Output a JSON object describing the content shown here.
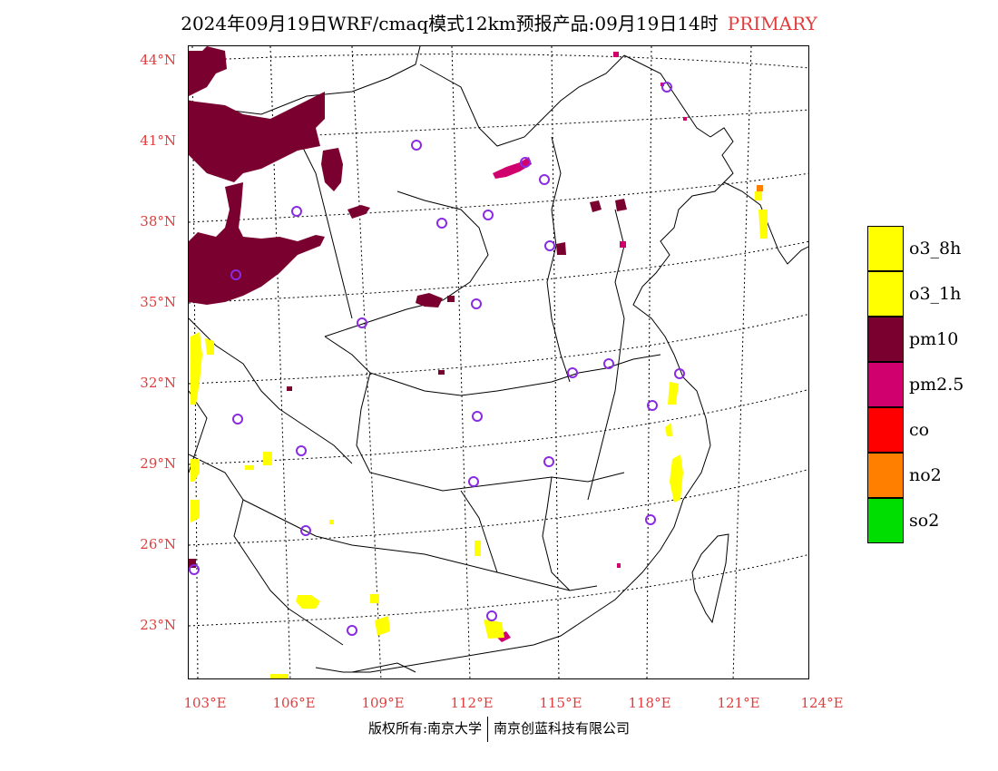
{
  "title": {
    "main": "2024年09月19日WRF/cmaq模式12km预报产品:09月19日14时",
    "tag": "PRIMARY"
  },
  "axes": {
    "lat_labels": [
      "44°N",
      "41°N",
      "38°N",
      "35°N",
      "32°N",
      "29°N",
      "26°N",
      "23°N"
    ],
    "lon_labels": [
      "103°E",
      "106°E",
      "109°E",
      "112°E",
      "115°E",
      "118°E",
      "121°E",
      "124°E"
    ]
  },
  "legend": [
    {
      "label": "o3_8h",
      "color": "#ffff00"
    },
    {
      "label": "o3_1h",
      "color": "#ffff00"
    },
    {
      "label": "pm10",
      "color": "#7a0030"
    },
    {
      "label": "pm2.5",
      "color": "#d0006e"
    },
    {
      "label": "co",
      "color": "#ff0000"
    },
    {
      "label": "no2",
      "color": "#ff7f00"
    },
    {
      "label": "so2",
      "color": "#00dd00"
    }
  ],
  "footer": {
    "left": "版权所有:南京大学",
    "right": "南京创蓝科技有限公司"
  },
  "colors": {
    "label_red": "#e23c3c",
    "station_marker": "#8a2be2"
  }
}
